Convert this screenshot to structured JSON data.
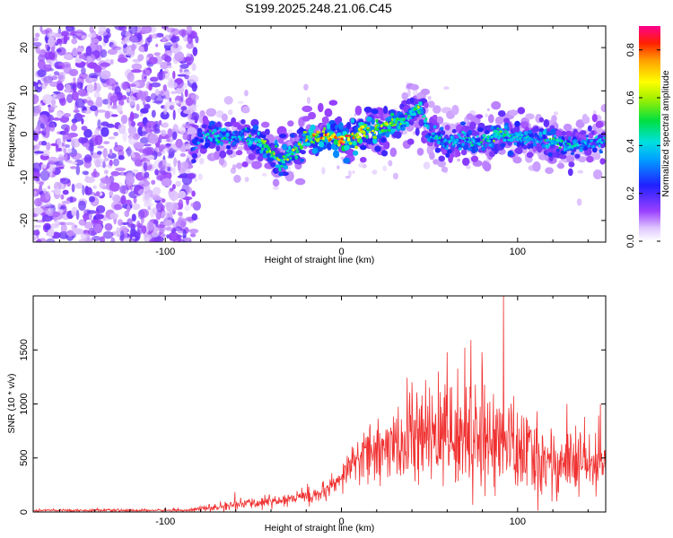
{
  "title": "S199.2025.248.21.06.C45",
  "chart_data": [
    {
      "type": "heatmap",
      "description_colormap": "rainbow (white/violet at 0, red/magenta at 1)",
      "xlabel": "Height of straight line (km)",
      "ylabel": "Frequency (Hz)",
      "xlim": [
        -175,
        150
      ],
      "ylim": [
        -25,
        25
      ],
      "xticks": [
        -100,
        0,
        100
      ],
      "yticks": [
        -20,
        -10,
        0,
        10,
        20
      ],
      "colorbar": {
        "label": "Normalized spectral amplitude",
        "range": [
          0.0,
          0.9
        ],
        "ticks": [
          0.0,
          0.2,
          0.4,
          0.6,
          0.8
        ],
        "tick_labels": [
          "0.0",
          "0.2",
          "0.4",
          "0.6",
          "0.8"
        ]
      },
      "noise_region_x": [
        -175,
        -85
      ],
      "signal_ridge": {
        "x": [
          -85,
          -80,
          -75,
          -70,
          -60,
          -50,
          -40,
          -35,
          -30,
          -25,
          -20,
          -15,
          -10,
          -5,
          0,
          5,
          10,
          15,
          20,
          25,
          30,
          35,
          40,
          42,
          45,
          50,
          55,
          60,
          70,
          80,
          90,
          100,
          110,
          120,
          130,
          140,
          150
        ],
        "y": [
          -4,
          -1,
          0,
          -1,
          -1,
          -1,
          -4,
          -6,
          -5,
          -3,
          -1,
          -1,
          0,
          -1,
          -1,
          -1,
          0,
          1,
          1,
          2,
          3,
          3,
          5,
          6,
          6,
          0,
          -1,
          -2,
          -1,
          -2,
          0,
          -1,
          -1,
          -2,
          -3,
          -2,
          -2
        ],
        "peak_amplitude": [
          0.35,
          0.4,
          0.45,
          0.5,
          0.4,
          0.5,
          0.6,
          0.65,
          0.6,
          0.55,
          0.7,
          0.75,
          0.8,
          0.85,
          0.9,
          0.8,
          0.75,
          0.7,
          0.65,
          0.7,
          0.6,
          0.55,
          0.5,
          0.6,
          0.55,
          0.4,
          0.45,
          0.4,
          0.45,
          0.5,
          0.55,
          0.45,
          0.4,
          0.5,
          0.45,
          0.4,
          0.4
        ]
      }
    },
    {
      "type": "line",
      "xlabel": "Height of straight line (km)",
      "ylabel": "SNR (10 * v/v)",
      "xlim": [
        -175,
        150
      ],
      "ylim": [
        0,
        2000
      ],
      "xticks": [
        -100,
        0,
        100
      ],
      "yticks": [
        0,
        500,
        1000,
        1500
      ],
      "color": "#f03030",
      "series": [
        {
          "name": "SNR",
          "envelope_x": [
            -175,
            -120,
            -90,
            -80,
            -70,
            -60,
            -50,
            -40,
            -30,
            -20,
            -10,
            -5,
            0,
            3,
            10,
            20,
            30,
            40,
            50,
            60,
            70,
            80,
            90,
            95,
            100,
            110,
            120,
            130,
            140,
            150
          ],
          "envelope_mean": [
            15,
            15,
            15,
            30,
            40,
            70,
            80,
            100,
            120,
            150,
            170,
            230,
            280,
            400,
            500,
            560,
            600,
            650,
            680,
            720,
            720,
            700,
            650,
            620,
            560,
            500,
            460,
            440,
            420,
            410
          ],
          "envelope_spread": [
            10,
            10,
            10,
            20,
            30,
            40,
            40,
            50,
            60,
            70,
            70,
            90,
            90,
            150,
            200,
            250,
            280,
            330,
            380,
            400,
            420,
            420,
            400,
            380,
            350,
            320,
            280,
            260,
            250,
            240
          ],
          "spikes": [
            [
              92,
              2000
            ],
            [
              60,
              1480
            ],
            [
              70,
              1520
            ],
            [
              55,
              1300
            ],
            [
              80,
              1300
            ],
            [
              40,
              1200
            ],
            [
              128,
              1000
            ],
            [
              147,
              1000
            ],
            [
              138,
              880
            ]
          ]
        }
      ]
    }
  ]
}
